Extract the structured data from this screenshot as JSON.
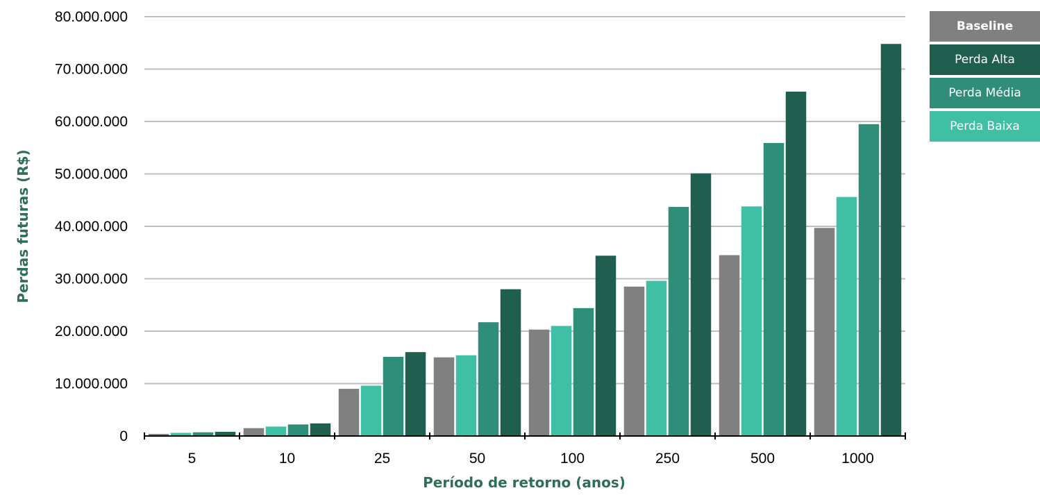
{
  "chart_data": {
    "type": "bar",
    "title": "",
    "xlabel": "Período de retorno (anos)",
    "ylabel": "Perdas futuras (R$)",
    "categories": [
      "5",
      "10",
      "25",
      "50",
      "100",
      "250",
      "500",
      "1000"
    ],
    "ylim": [
      0,
      80000000
    ],
    "yticks": [
      {
        "value": 0,
        "label": "0"
      },
      {
        "value": 10000000,
        "label": "10.000.000"
      },
      {
        "value": 20000000,
        "label": "20.000.000"
      },
      {
        "value": 30000000,
        "label": "30.000.000"
      },
      {
        "value": 40000000,
        "label": "40.000.000"
      },
      {
        "value": 50000000,
        "label": "50.000.000"
      },
      {
        "value": 60000000,
        "label": "60.000.000"
      },
      {
        "value": 70000000,
        "label": "70.000.000"
      },
      {
        "value": 80000000,
        "label": "80.000.000"
      }
    ],
    "grid": true,
    "legend_position": "top-right",
    "series": [
      {
        "name": "Baseline",
        "color": "#808080",
        "values": [
          400000,
          1500000,
          9000000,
          15000000,
          20300000,
          28500000,
          34500000,
          39700000
        ]
      },
      {
        "name": "Perda Baixa",
        "color": "#3fbfa4",
        "values": [
          600000,
          1800000,
          9600000,
          15400000,
          21000000,
          29600000,
          43800000,
          45600000
        ]
      },
      {
        "name": "Perda Média",
        "color": "#2e8e7a",
        "values": [
          700000,
          2200000,
          15100000,
          21700000,
          24400000,
          43700000,
          55900000,
          59500000
        ]
      },
      {
        "name": "Perda Alta",
        "color": "#205e50",
        "values": [
          800000,
          2400000,
          16000000,
          28000000,
          34400000,
          50100000,
          65700000,
          74800000
        ]
      }
    ],
    "legend_order": [
      "Baseline",
      "Perda Alta",
      "Perda Média",
      "Perda Baixa"
    ]
  },
  "colors": {
    "axis_title": "#2f6e5b",
    "grid": "#bfbfbf",
    "axis": "#000000"
  }
}
